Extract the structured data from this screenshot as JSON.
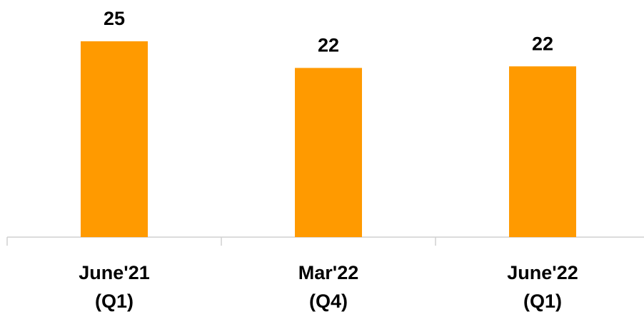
{
  "chart_data": {
    "type": "bar",
    "categories": [
      [
        "June'21",
        "(Q1)"
      ],
      [
        "Mar'22",
        "(Q4)"
      ],
      [
        "June'22",
        "(Q1)"
      ]
    ],
    "values": [
      25,
      21.6,
      21.8
    ],
    "value_labels": [
      "25",
      "22",
      "22"
    ],
    "color": "#ff9a00"
  }
}
